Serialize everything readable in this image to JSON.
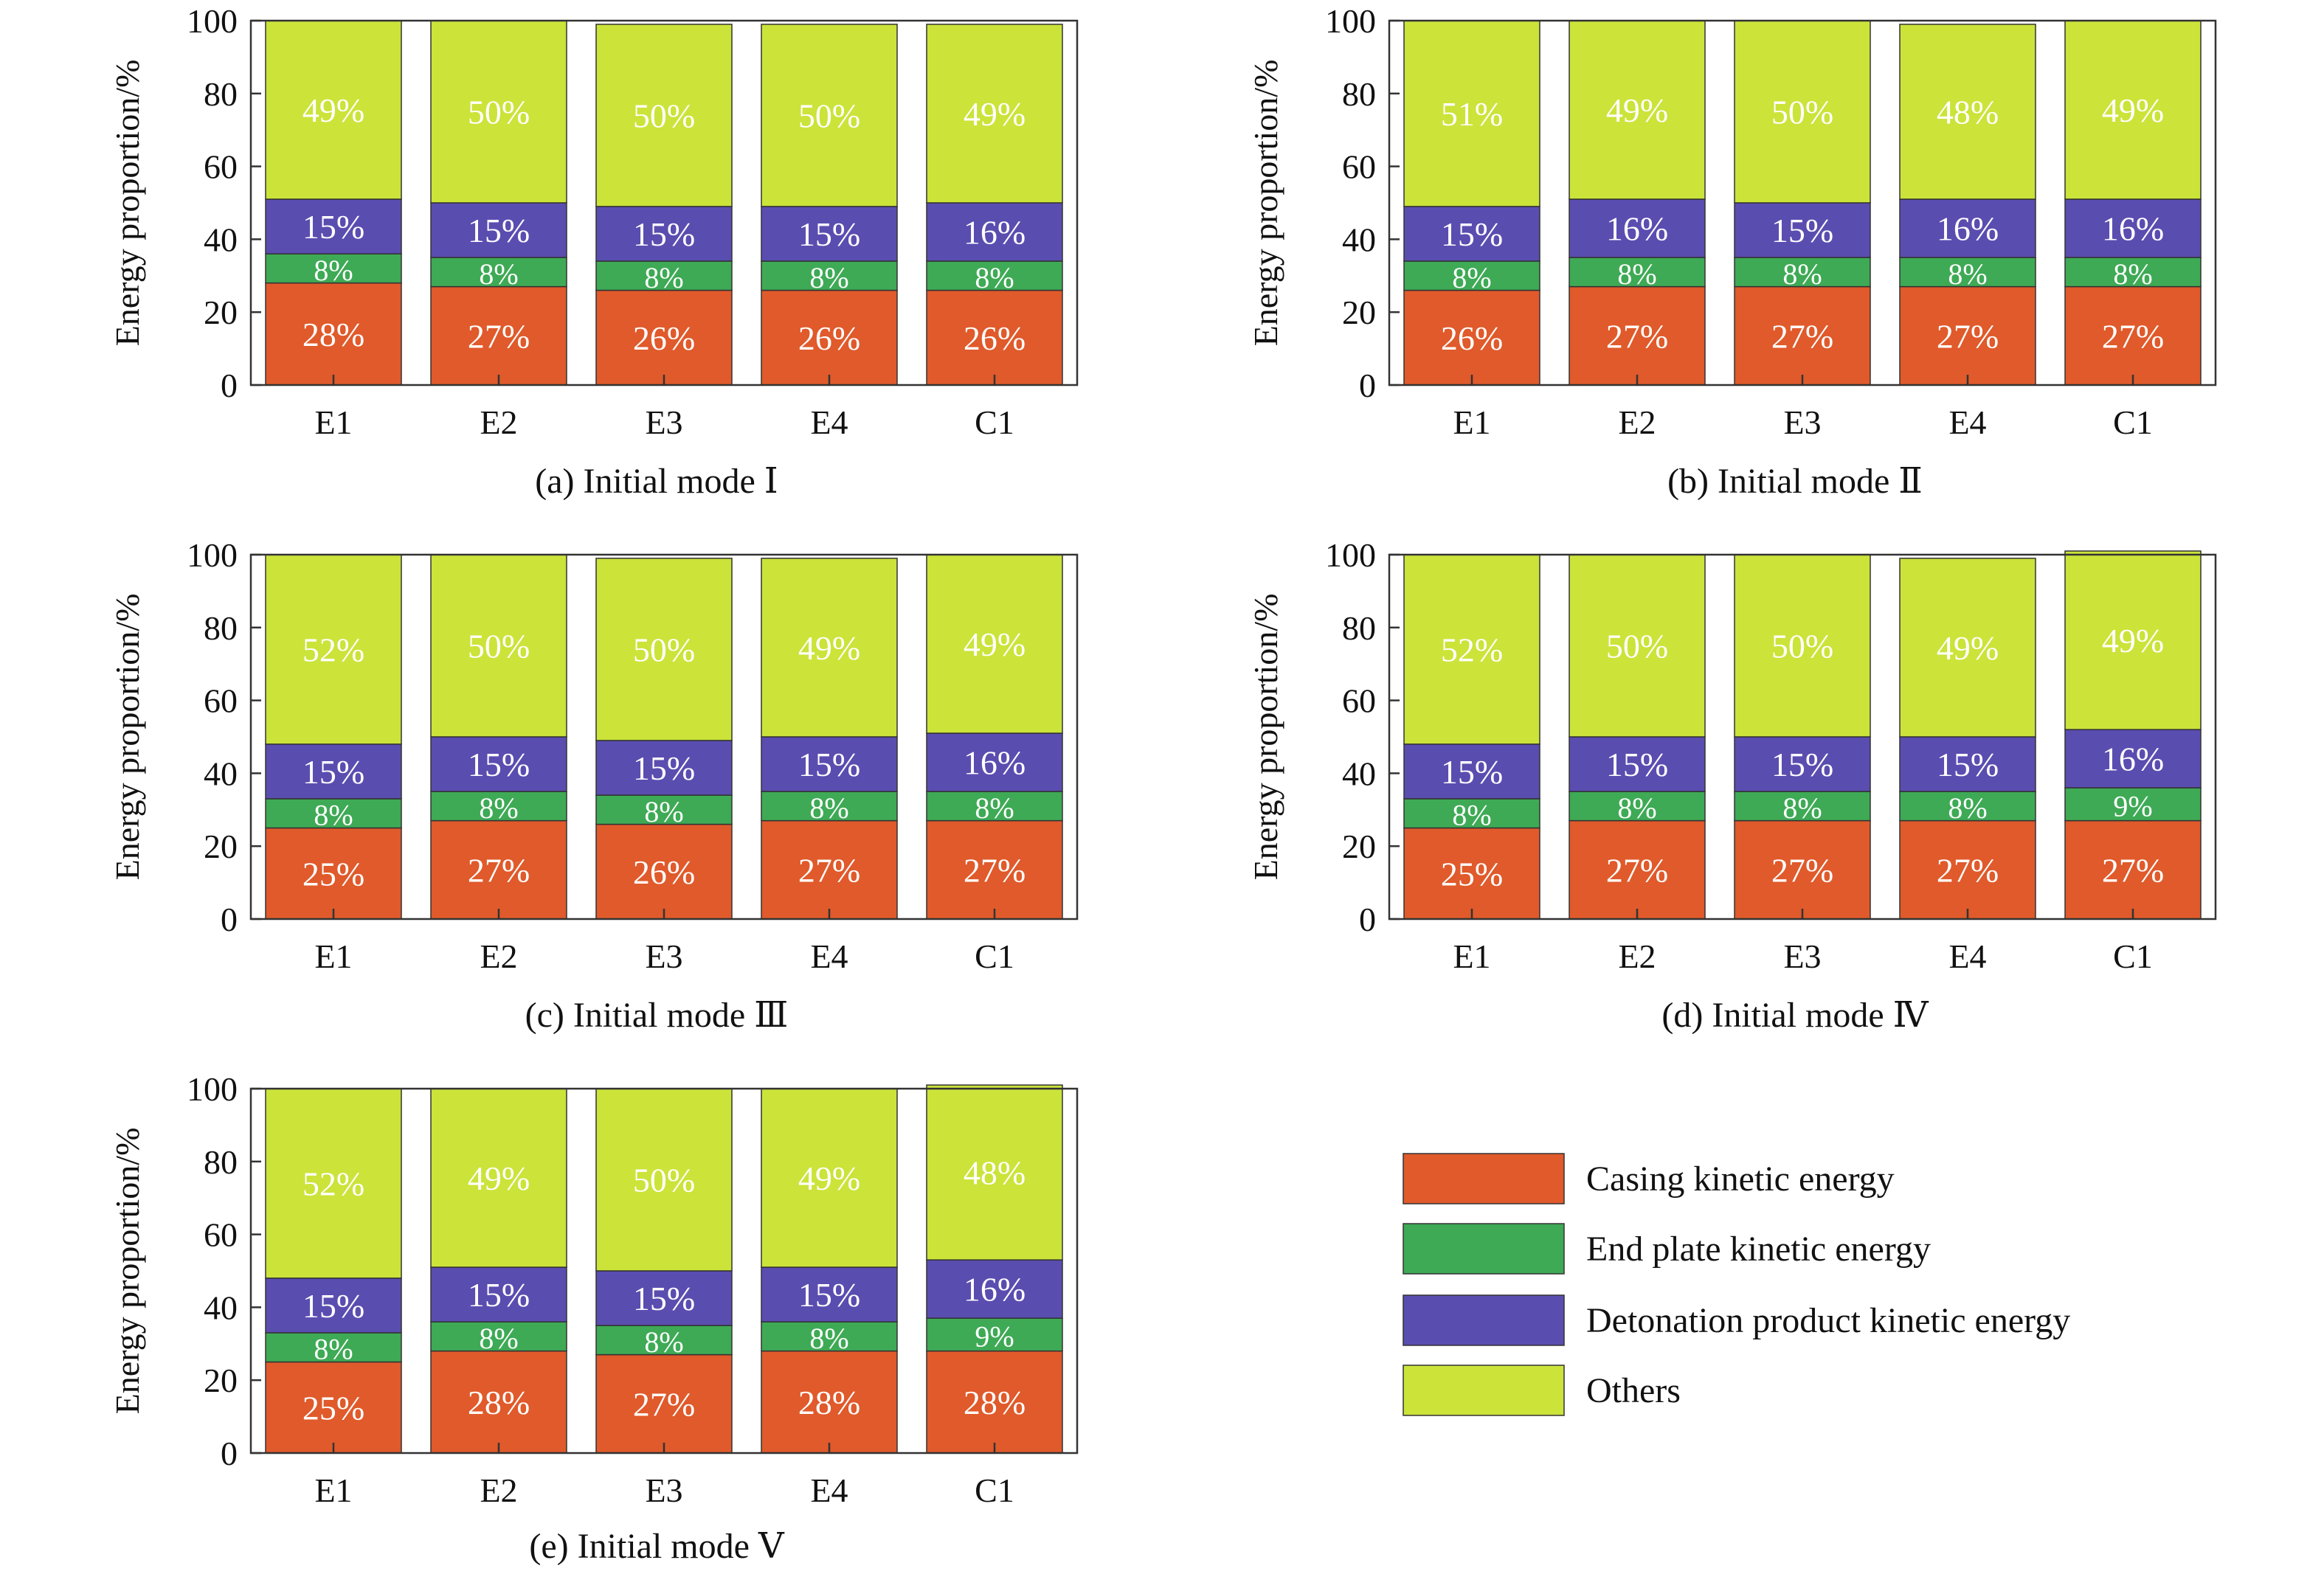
{
  "chart_data": [
    {
      "type": "bar",
      "stacked": true,
      "caption": "(a) Initial mode Ⅰ",
      "ylabel": "Energy proportion/%",
      "ylim": [
        0,
        100
      ],
      "yticks": [
        "0",
        "20",
        "40",
        "60",
        "80",
        "100"
      ],
      "categories": [
        "E1",
        "E2",
        "E3",
        "E4",
        "C1"
      ],
      "series": [
        {
          "name": "Casing kinetic energy",
          "values": [
            28,
            27,
            26,
            26,
            26
          ]
        },
        {
          "name": "End plate kinetic energy",
          "values": [
            8,
            8,
            8,
            8,
            8
          ]
        },
        {
          "name": "Detonation product kinetic energy",
          "values": [
            15,
            15,
            15,
            15,
            16
          ]
        },
        {
          "name": "Others",
          "values": [
            49,
            50,
            50,
            50,
            49
          ]
        }
      ]
    },
    {
      "type": "bar",
      "stacked": true,
      "caption": "(b) Initial mode Ⅱ",
      "ylabel": "Energy proportion/%",
      "ylim": [
        0,
        100
      ],
      "yticks": [
        "0",
        "20",
        "40",
        "60",
        "80",
        "100"
      ],
      "categories": [
        "E1",
        "E2",
        "E3",
        "E4",
        "C1"
      ],
      "series": [
        {
          "name": "Casing kinetic energy",
          "values": [
            26,
            27,
            27,
            27,
            27
          ]
        },
        {
          "name": "End plate kinetic energy",
          "values": [
            8,
            8,
            8,
            8,
            8
          ]
        },
        {
          "name": "Detonation product kinetic energy",
          "values": [
            15,
            16,
            15,
            16,
            16
          ]
        },
        {
          "name": "Others",
          "values": [
            51,
            49,
            50,
            48,
            49
          ]
        }
      ]
    },
    {
      "type": "bar",
      "stacked": true,
      "caption": "(c) Initial mode Ⅲ",
      "ylabel": "Energy proportion/%",
      "ylim": [
        0,
        100
      ],
      "yticks": [
        "0",
        "20",
        "40",
        "60",
        "80",
        "100"
      ],
      "categories": [
        "E1",
        "E2",
        "E3",
        "E4",
        "C1"
      ],
      "series": [
        {
          "name": "Casing kinetic energy",
          "values": [
            25,
            27,
            26,
            27,
            27
          ]
        },
        {
          "name": "End plate kinetic energy",
          "values": [
            8,
            8,
            8,
            8,
            8
          ]
        },
        {
          "name": "Detonation product kinetic energy",
          "values": [
            15,
            15,
            15,
            15,
            16
          ]
        },
        {
          "name": "Others",
          "values": [
            52,
            50,
            50,
            49,
            49
          ]
        }
      ]
    },
    {
      "type": "bar",
      "stacked": true,
      "caption": "(d) Initial mode Ⅳ",
      "ylabel": "Energy proportion/%",
      "ylim": [
        0,
        100
      ],
      "yticks": [
        "0",
        "20",
        "40",
        "60",
        "80",
        "100"
      ],
      "categories": [
        "E1",
        "E2",
        "E3",
        "E4",
        "C1"
      ],
      "series": [
        {
          "name": "Casing kinetic energy",
          "values": [
            25,
            27,
            27,
            27,
            27
          ]
        },
        {
          "name": "End plate kinetic energy",
          "values": [
            8,
            8,
            8,
            8,
            9
          ]
        },
        {
          "name": "Detonation product kinetic energy",
          "values": [
            15,
            15,
            15,
            15,
            16
          ]
        },
        {
          "name": "Others",
          "values": [
            52,
            50,
            50,
            49,
            49
          ]
        }
      ]
    },
    {
      "type": "bar",
      "stacked": true,
      "caption": "(e) Initial mode Ⅴ",
      "ylabel": "Energy proportion/%",
      "ylim": [
        0,
        100
      ],
      "yticks": [
        "0",
        "20",
        "40",
        "60",
        "80",
        "100"
      ],
      "categories": [
        "E1",
        "E2",
        "E3",
        "E4",
        "C1"
      ],
      "series": [
        {
          "name": "Casing kinetic energy",
          "values": [
            25,
            28,
            27,
            28,
            28
          ]
        },
        {
          "name": "End plate kinetic energy",
          "values": [
            8,
            8,
            8,
            8,
            9
          ]
        },
        {
          "name": "Detonation product kinetic energy",
          "values": [
            15,
            15,
            15,
            15,
            16
          ]
        },
        {
          "name": "Others",
          "values": [
            52,
            49,
            50,
            49,
            48
          ]
        }
      ]
    }
  ],
  "legend": {
    "items": [
      {
        "label": "Casing kinetic energy",
        "color": "#E05A2B"
      },
      {
        "label": "End plate kinetic energy",
        "color": "#3EAA55"
      },
      {
        "label": "Detonation product kinetic energy",
        "color": "#5A4DB0"
      },
      {
        "label": "Others",
        "color": "#CCE33A"
      }
    ]
  },
  "colors": {
    "label_text": "#ffffff",
    "axis": "#333333"
  }
}
